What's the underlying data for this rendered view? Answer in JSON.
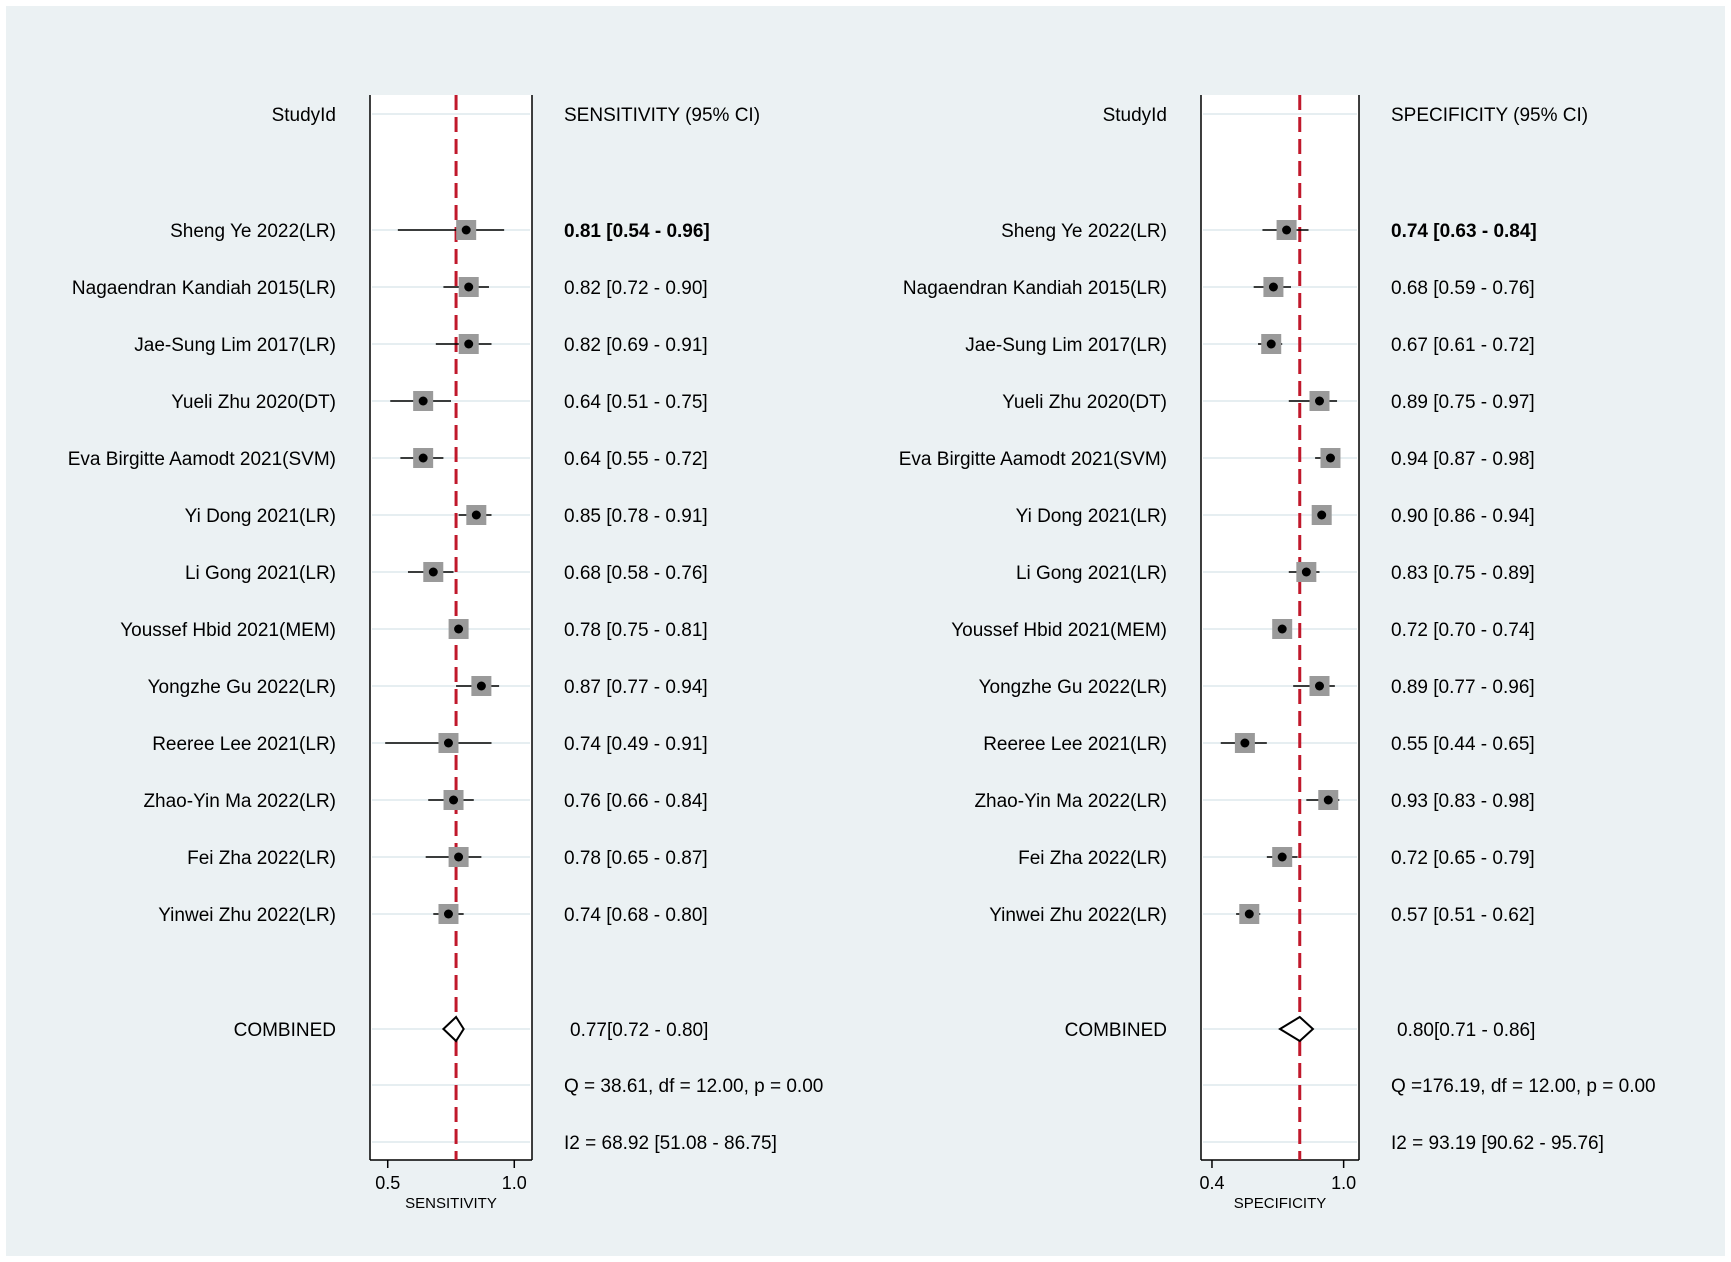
{
  "colors": {
    "background": "#ebf1f3",
    "panel": "#ffffff",
    "reference_line": "#c0182b",
    "marker_box": "#9a9a9a",
    "marker_dot": "#000000",
    "gridline": "#e6eef1"
  },
  "chart_data": [
    {
      "type": "forest",
      "column_header_study": "StudyId",
      "column_header_value": "SENSITIVITY (95% CI)",
      "xlabel": "SENSITIVITY",
      "xlim": [
        0.43,
        1.07
      ],
      "xticks": [
        "0.5",
        "1.0"
      ],
      "xtick_values": [
        0.5,
        1.0
      ],
      "reference_value": 0.77,
      "studies": [
        {
          "name": "Sheng Ye 2022(LR)",
          "est": 0.81,
          "lo": 0.54,
          "hi": 0.96,
          "label": "0.81 [0.54 - 0.96]",
          "bold": true
        },
        {
          "name": "Nagaendran Kandiah 2015(LR)",
          "est": 0.82,
          "lo": 0.72,
          "hi": 0.9,
          "label": "0.82 [0.72 - 0.90]",
          "bold": false
        },
        {
          "name": "Jae-Sung Lim 2017(LR)",
          "est": 0.82,
          "lo": 0.69,
          "hi": 0.91,
          "label": "0.82 [0.69 - 0.91]",
          "bold": false
        },
        {
          "name": "Yueli Zhu 2020(DT)",
          "est": 0.64,
          "lo": 0.51,
          "hi": 0.75,
          "label": "0.64 [0.51 - 0.75]",
          "bold": false
        },
        {
          "name": "Eva Birgitte Aamodt 2021(SVM)",
          "est": 0.64,
          "lo": 0.55,
          "hi": 0.72,
          "label": "0.64 [0.55 - 0.72]",
          "bold": false
        },
        {
          "name": "Yi Dong 2021(LR)",
          "est": 0.85,
          "lo": 0.78,
          "hi": 0.91,
          "label": "0.85 [0.78 - 0.91]",
          "bold": false
        },
        {
          "name": "Li Gong 2021(LR)",
          "est": 0.68,
          "lo": 0.58,
          "hi": 0.76,
          "label": "0.68 [0.58 - 0.76]",
          "bold": false
        },
        {
          "name": "Youssef Hbid 2021(MEM)",
          "est": 0.78,
          "lo": 0.75,
          "hi": 0.81,
          "label": "0.78 [0.75 - 0.81]",
          "bold": false
        },
        {
          "name": "Yongzhe Gu 2022(LR)",
          "est": 0.87,
          "lo": 0.77,
          "hi": 0.94,
          "label": "0.87 [0.77 - 0.94]",
          "bold": false
        },
        {
          "name": "Reeree Lee 2021(LR)",
          "est": 0.74,
          "lo": 0.49,
          "hi": 0.91,
          "label": "0.74 [0.49 - 0.91]",
          "bold": false
        },
        {
          "name": "Zhao-Yin Ma 2022(LR)",
          "est": 0.76,
          "lo": 0.66,
          "hi": 0.84,
          "label": "0.76 [0.66 - 0.84]",
          "bold": false
        },
        {
          "name": "Fei Zha 2022(LR)",
          "est": 0.78,
          "lo": 0.65,
          "hi": 0.87,
          "label": "0.78 [0.65 - 0.87]",
          "bold": false
        },
        {
          "name": "Yinwei Zhu 2022(LR)",
          "est": 0.74,
          "lo": 0.68,
          "hi": 0.8,
          "label": "0.74 [0.68 - 0.80]",
          "bold": false
        }
      ],
      "combined": {
        "name": "COMBINED",
        "est": 0.77,
        "lo": 0.72,
        "hi": 0.8,
        "label": "0.77[0.72 - 0.80]"
      },
      "q_text": "Q = 38.61, df = 12.00, p =  0.00",
      "i2_text": "I2 = 68.92 [51.08 - 86.75]"
    },
    {
      "type": "forest",
      "column_header_study": "StudyId",
      "column_header_value": "SPECIFICITY (95% CI)",
      "xlabel": "SPECIFICITY",
      "xlim": [
        0.35,
        1.07
      ],
      "xticks": [
        "0.4",
        "1.0"
      ],
      "xtick_values": [
        0.4,
        1.0
      ],
      "reference_value": 0.8,
      "studies": [
        {
          "name": "Sheng Ye 2022(LR)",
          "est": 0.74,
          "lo": 0.63,
          "hi": 0.84,
          "label": "0.74 [0.63 - 0.84]",
          "bold": true
        },
        {
          "name": "Nagaendran Kandiah 2015(LR)",
          "est": 0.68,
          "lo": 0.59,
          "hi": 0.76,
          "label": "0.68 [0.59 - 0.76]",
          "bold": false
        },
        {
          "name": "Jae-Sung Lim 2017(LR)",
          "est": 0.67,
          "lo": 0.61,
          "hi": 0.72,
          "label": "0.67 [0.61 - 0.72]",
          "bold": false
        },
        {
          "name": "Yueli Zhu 2020(DT)",
          "est": 0.89,
          "lo": 0.75,
          "hi": 0.97,
          "label": "0.89 [0.75 - 0.97]",
          "bold": false
        },
        {
          "name": "Eva Birgitte Aamodt 2021(SVM)",
          "est": 0.94,
          "lo": 0.87,
          "hi": 0.98,
          "label": "0.94 [0.87 - 0.98]",
          "bold": false
        },
        {
          "name": "Yi Dong 2021(LR)",
          "est": 0.9,
          "lo": 0.86,
          "hi": 0.94,
          "label": "0.90 [0.86 - 0.94]",
          "bold": false
        },
        {
          "name": "Li Gong 2021(LR)",
          "est": 0.83,
          "lo": 0.75,
          "hi": 0.89,
          "label": "0.83 [0.75 - 0.89]",
          "bold": false
        },
        {
          "name": "Youssef Hbid 2021(MEM)",
          "est": 0.72,
          "lo": 0.7,
          "hi": 0.74,
          "label": "0.72 [0.70 - 0.74]",
          "bold": false
        },
        {
          "name": "Yongzhe Gu 2022(LR)",
          "est": 0.89,
          "lo": 0.77,
          "hi": 0.96,
          "label": "0.89 [0.77 - 0.96]",
          "bold": false
        },
        {
          "name": "Reeree Lee 2021(LR)",
          "est": 0.55,
          "lo": 0.44,
          "hi": 0.65,
          "label": "0.55 [0.44 - 0.65]",
          "bold": false
        },
        {
          "name": "Zhao-Yin Ma 2022(LR)",
          "est": 0.93,
          "lo": 0.83,
          "hi": 0.98,
          "label": "0.93 [0.83 - 0.98]",
          "bold": false
        },
        {
          "name": "Fei Zha 2022(LR)",
          "est": 0.72,
          "lo": 0.65,
          "hi": 0.79,
          "label": "0.72 [0.65 - 0.79]",
          "bold": false
        },
        {
          "name": "Yinwei Zhu 2022(LR)",
          "est": 0.57,
          "lo": 0.51,
          "hi": 0.62,
          "label": "0.57 [0.51 - 0.62]",
          "bold": false
        }
      ],
      "combined": {
        "name": "COMBINED",
        "est": 0.8,
        "lo": 0.71,
        "hi": 0.86,
        "label": "0.80[0.71 - 0.86]"
      },
      "q_text": "Q =176.19, df = 12.00, p =  0.00",
      "i2_text": "I2 = 93.19 [90.62 - 95.76]"
    }
  ]
}
